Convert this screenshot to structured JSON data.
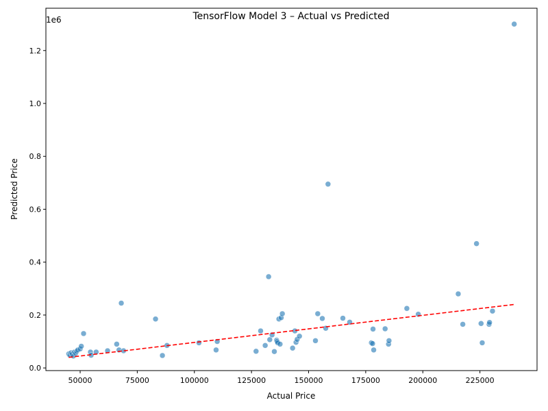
{
  "chart_data": {
    "type": "scatter",
    "title": "TensorFlow Model 3 – Actual vs Predicted",
    "xlabel": "Actual Price",
    "ylabel": "Predicted Price",
    "offset_text": "1e6",
    "xlim": [
      35000,
      250000
    ],
    "ylim": [
      -10000,
      1360000
    ],
    "x_ticks": [
      50000,
      75000,
      100000,
      125000,
      150000,
      175000,
      200000,
      225000
    ],
    "x_tick_labels": [
      "50000",
      "75000",
      "100000",
      "125000",
      "150000",
      "175000",
      "200000",
      "225000"
    ],
    "y_ticks": [
      0,
      200000,
      400000,
      600000,
      800000,
      1000000,
      1200000
    ],
    "y_tick_labels": [
      "0.0",
      "0.2",
      "0.4",
      "0.6",
      "0.8",
      "1.0",
      "1.2"
    ],
    "grid": false,
    "point_color": "#1f77b4",
    "reference_line": {
      "style": "dashed",
      "color": "#ff0000",
      "x": [
        45000,
        240000
      ],
      "y": [
        40000,
        240000
      ]
    },
    "points": [
      [
        45000,
        53000
      ],
      [
        45500,
        48000
      ],
      [
        46000,
        57000
      ],
      [
        46500,
        52000
      ],
      [
        47000,
        45000
      ],
      [
        47500,
        60000
      ],
      [
        48000,
        55000
      ],
      [
        48500,
        63000
      ],
      [
        49000,
        68000
      ],
      [
        50000,
        72000
      ],
      [
        50500,
        82000
      ],
      [
        51500,
        130000
      ],
      [
        54500,
        60000
      ],
      [
        54800,
        48000
      ],
      [
        57000,
        60000
      ],
      [
        62000,
        65000
      ],
      [
        66000,
        90000
      ],
      [
        67000,
        68000
      ],
      [
        68000,
        245000
      ],
      [
        69000,
        65000
      ],
      [
        83000,
        185000
      ],
      [
        86000,
        47000
      ],
      [
        88000,
        85000
      ],
      [
        102000,
        95000
      ],
      [
        109500,
        68000
      ],
      [
        110000,
        100000
      ],
      [
        127000,
        63000
      ],
      [
        129000,
        140000
      ],
      [
        131000,
        85000
      ],
      [
        132500,
        345000
      ],
      [
        133000,
        107000
      ],
      [
        134000,
        125000
      ],
      [
        135000,
        62000
      ],
      [
        136000,
        105000
      ],
      [
        136200,
        100000
      ],
      [
        136500,
        95000
      ],
      [
        137000,
        185000
      ],
      [
        137500,
        90000
      ],
      [
        138000,
        190000
      ],
      [
        138500,
        205000
      ],
      [
        143000,
        75000
      ],
      [
        144000,
        140000
      ],
      [
        144500,
        97000
      ],
      [
        145000,
        108000
      ],
      [
        146000,
        120000
      ],
      [
        153000,
        103000
      ],
      [
        154000,
        205000
      ],
      [
        156000,
        187000
      ],
      [
        157500,
        150000
      ],
      [
        158500,
        695000
      ],
      [
        165000,
        188000
      ],
      [
        168000,
        173000
      ],
      [
        177500,
        95000
      ],
      [
        178000,
        92000
      ],
      [
        178200,
        147000
      ],
      [
        178500,
        68000
      ],
      [
        183500,
        148000
      ],
      [
        185000,
        90000
      ],
      [
        185200,
        103000
      ],
      [
        193000,
        225000
      ],
      [
        198000,
        203000
      ],
      [
        215500,
        280000
      ],
      [
        217500,
        165000
      ],
      [
        223500,
        470000
      ],
      [
        225500,
        168000
      ],
      [
        226000,
        95000
      ],
      [
        229000,
        165000
      ],
      [
        229200,
        172000
      ],
      [
        230500,
        215000
      ],
      [
        240000,
        1300000
      ]
    ]
  }
}
